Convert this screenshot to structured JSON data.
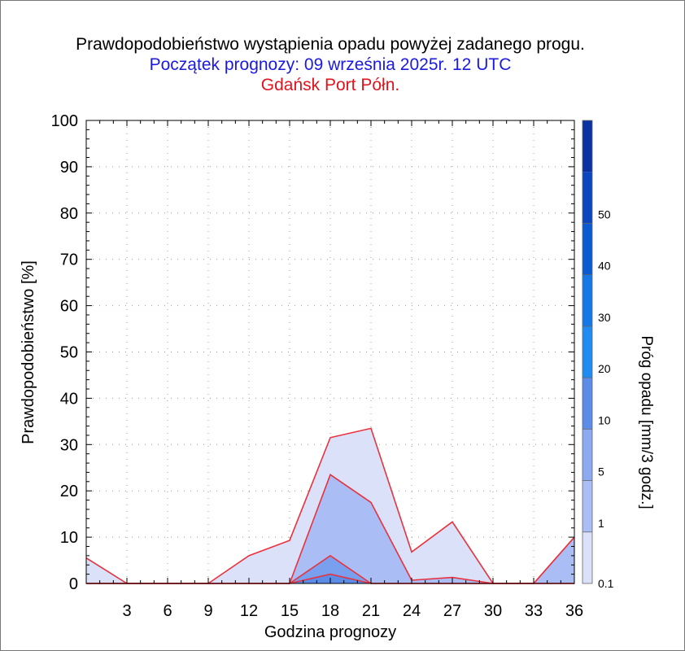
{
  "titles": {
    "main": "Prawdopodobieństwo wystąpienia opadu powyżej zadanego progu.",
    "start": "Początek prognozy: 09 września 2025r. 12 UTC",
    "station": "Gdańsk Port Półn."
  },
  "chart_data": {
    "type": "area",
    "title": "Prawdopodobieństwo wystąpienia opadu powyżej zadanego progu.",
    "subtitle": "Początek prognozy: 09 września 2025r. 12 UTC",
    "station": "Gdańsk Port Półn.",
    "xlabel": "Godzina prognozy",
    "ylabel": "Prawdopodobieństwo [%]",
    "xlim": [
      0,
      36
    ],
    "ylim": [
      0,
      100
    ],
    "x_ticks": [
      3,
      6,
      9,
      12,
      15,
      18,
      21,
      24,
      27,
      30,
      33,
      36
    ],
    "y_ticks": [
      0,
      10,
      20,
      30,
      40,
      50,
      60,
      70,
      80,
      90,
      100
    ],
    "grid": true,
    "x": [
      0,
      3,
      6,
      9,
      12,
      15,
      18,
      21,
      24,
      27,
      30,
      33,
      36
    ],
    "series": [
      {
        "name": "0.1",
        "color": "#dce1fa",
        "values": [
          5.5,
          0,
          0,
          0,
          6,
          9.3,
          31.5,
          33.5,
          6.8,
          13.3,
          0,
          0,
          10
        ]
      },
      {
        "name": "1",
        "color": "#aabef5",
        "values": [
          0,
          0,
          0,
          0,
          0,
          0,
          23.5,
          17.5,
          0.7,
          1.3,
          0,
          0,
          10
        ]
      },
      {
        "name": "5",
        "color": "#78a0ee",
        "values": [
          0,
          0,
          0,
          0,
          0,
          0,
          6,
          0,
          0,
          0,
          0,
          0,
          0
        ]
      },
      {
        "name": "10",
        "color": "#5a8ce8",
        "values": [
          0,
          0,
          0,
          0,
          0,
          0,
          2,
          0,
          0,
          0,
          0,
          0,
          0
        ]
      }
    ],
    "colorbar": {
      "label": "Próg opadu [mm/3 godz.]",
      "ticks": [
        "0.1",
        "1",
        "5",
        "10",
        "20",
        "30",
        "40",
        "50"
      ],
      "colors": [
        "#dce1fa",
        "#aabef5",
        "#8caaf2",
        "#5a8ce8",
        "#1e8cf0",
        "#1478e6",
        "#0a5ad2",
        "#0a46be",
        "#0a32a0"
      ]
    },
    "line_color": "#e8323c"
  }
}
